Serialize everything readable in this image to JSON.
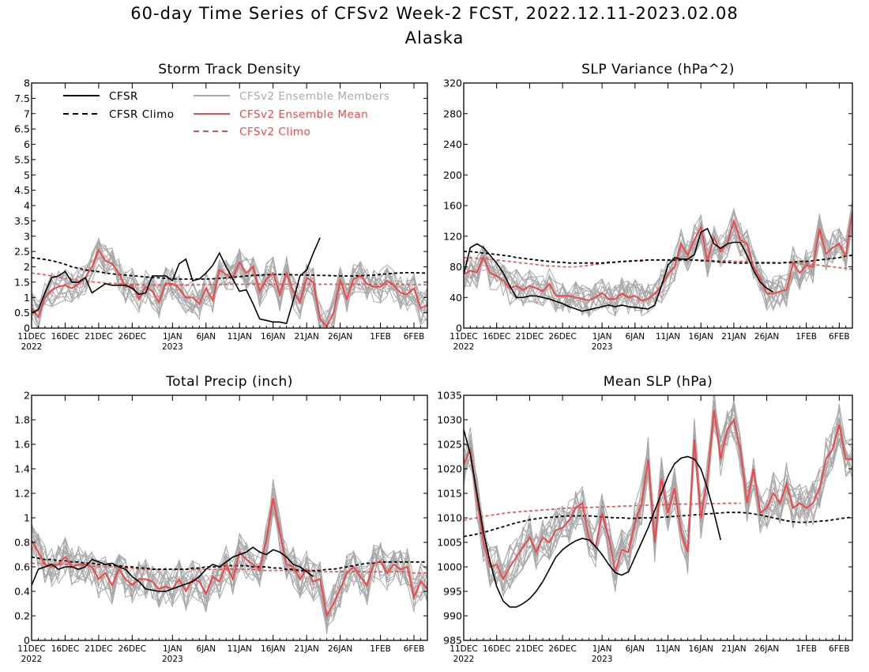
{
  "title_line1": "60-day Time Series of CFSv2 Week-2 FCST, 2022.12.11-2023.02.08",
  "title_line2": "Alaska",
  "legend": {
    "cfsr": "CFSR",
    "cfsr_climo": "CFSR Climo",
    "members": "CFSv2 Ensemble Members",
    "ens_mean": "CFSv2 Ensemble Mean",
    "cfsv2_climo": "CFSv2 Climo"
  },
  "colors": {
    "cfsr": "#000000",
    "members": "#a9a9a9",
    "ens_mean": "#f04848",
    "cfsv2_climo": "#f04848"
  },
  "x_ticks": [
    {
      "day": 0,
      "label": "11DEC",
      "sub": "2022"
    },
    {
      "day": 5,
      "label": "16DEC"
    },
    {
      "day": 10,
      "label": "21DEC"
    },
    {
      "day": 15,
      "label": "26DEC"
    },
    {
      "day": 21,
      "label": "1JAN",
      "sub": "2023"
    },
    {
      "day": 26,
      "label": "6JAN"
    },
    {
      "day": 31,
      "label": "11JAN"
    },
    {
      "day": 36,
      "label": "16JAN"
    },
    {
      "day": 41,
      "label": "21JAN"
    },
    {
      "day": 46,
      "label": "26JAN"
    },
    {
      "day": 52,
      "label": "1FEB"
    },
    {
      "day": 57,
      "label": "6FEB"
    }
  ],
  "chart_data": [
    {
      "type": "line",
      "title": "Storm Track Density",
      "x_days": [
        0,
        59
      ],
      "ylim": [
        0,
        8
      ],
      "yticks": [
        0,
        0.5,
        1,
        1.5,
        2,
        2.5,
        3,
        3.5,
        4,
        4.5,
        5,
        5.5,
        6,
        6.5,
        7,
        7.5,
        8
      ],
      "ytick_labels": [
        "0",
        "0.5",
        "1",
        "1.5",
        "2",
        "2.5",
        "3",
        "3.5",
        "4",
        "4.5",
        "5",
        "5.5",
        "6",
        "6.5",
        "7",
        "7.5",
        "8"
      ],
      "has_legend": true,
      "cfsr": [
        0.5,
        0.6,
        1.15,
        1.65,
        1.7,
        1.85,
        1.5,
        1.5,
        1.65,
        1.15,
        1.3,
        1.45,
        1.4,
        1.4,
        1.4,
        1.3,
        1.1,
        1.15,
        1.7,
        1.7,
        1.7,
        1.55,
        2.1,
        2.25,
        1.55,
        1.6,
        1.8,
        2.05,
        2.45,
        2.0,
        1.6,
        1.2,
        1.25,
        0.8,
        0.3,
        0.25,
        0.2,
        0.2,
        0.15,
        0.9,
        1.7,
        1.9,
        2.45,
        2.95
      ],
      "cfsr_climo": [
        2.3,
        2.27,
        2.24,
        2.2,
        2.15,
        2.08,
        2.0,
        1.95,
        1.9,
        1.87,
        1.84,
        1.8,
        1.77,
        1.75,
        1.73,
        1.71,
        1.69,
        1.67,
        1.65,
        1.64,
        1.62,
        1.61,
        1.6,
        1.6,
        1.6,
        1.6,
        1.6,
        1.61,
        1.62,
        1.64,
        1.66,
        1.68,
        1.7,
        1.72,
        1.73,
        1.74,
        1.75,
        1.75,
        1.75,
        1.74,
        1.74,
        1.73,
        1.73,
        1.72,
        1.72,
        1.71,
        1.7,
        1.7,
        1.7,
        1.71,
        1.72,
        1.73,
        1.75,
        1.77,
        1.79,
        1.8,
        1.81,
        1.81,
        1.8,
        1.8
      ],
      "ens_mean": [
        0.65,
        0.35,
        1.0,
        1.25,
        1.35,
        1.4,
        1.3,
        1.45,
        1.65,
        2.0,
        2.55,
        2.2,
        2.1,
        1.8,
        1.35,
        1.4,
        0.95,
        1.35,
        1.2,
        0.85,
        1.45,
        1.45,
        1.3,
        1.0,
        1.0,
        0.8,
        1.3,
        0.9,
        1.9,
        1.75,
        1.65,
        2.15,
        1.8,
        2.0,
        1.2,
        1.6,
        1.8,
        1.1,
        1.8,
        1.2,
        0.85,
        1.65,
        1.5,
        0.3,
        0.05,
        0.5,
        1.55,
        0.95,
        1.6,
        1.7,
        1.45,
        1.35,
        1.35,
        1.55,
        1.4,
        1.15,
        1.1,
        1.3,
        0.65,
        0.75
      ],
      "cfsv2_climo": [
        1.8,
        1.77,
        1.74,
        1.7,
        1.66,
        1.62,
        1.59,
        1.56,
        1.53,
        1.51,
        1.49,
        1.47,
        1.46,
        1.45,
        1.44,
        1.43,
        1.42,
        1.42,
        1.41,
        1.41,
        1.41,
        1.41,
        1.41,
        1.41,
        1.41,
        1.42,
        1.42,
        1.42,
        1.43,
        1.43,
        1.43,
        1.43,
        1.43,
        1.43,
        1.43,
        1.43,
        1.43,
        1.43,
        1.43,
        1.43,
        1.43,
        1.43,
        1.43,
        1.43,
        1.43,
        1.43,
        1.43,
        1.43,
        1.43,
        1.43,
        1.43,
        1.43,
        1.43,
        1.43,
        1.43,
        1.43,
        1.42,
        1.42,
        1.42,
        1.42
      ],
      "member_spread": 0.55,
      "member_count": 16
    },
    {
      "type": "line",
      "title": "SLP Variance (hPa^2)",
      "x_days": [
        0,
        59
      ],
      "ylim": [
        0,
        320
      ],
      "yticks": [
        0,
        40,
        80,
        120,
        160,
        200,
        240,
        280,
        320
      ],
      "ytick_labels": [
        "0",
        "40",
        "80",
        "120",
        "160",
        "200",
        "240",
        "280",
        "320"
      ],
      "has_legend": false,
      "cfsr": [
        70,
        105,
        110,
        105,
        95,
        85,
        72,
        55,
        40,
        40,
        42,
        42,
        40,
        38,
        35,
        32,
        28,
        25,
        22,
        24,
        26,
        28,
        30,
        28,
        30,
        28,
        27,
        26,
        25,
        30,
        55,
        82,
        92,
        90,
        90,
        96,
        125,
        130,
        110,
        104,
        110,
        112,
        112,
        95,
        75,
        60,
        52,
        47
      ],
      "cfsr_climo": [
        100,
        100,
        99,
        98,
        97,
        96,
        95,
        94,
        92,
        91,
        90,
        89,
        88,
        87,
        86,
        86,
        85,
        85,
        85,
        85,
        85,
        85,
        86,
        86,
        87,
        87,
        88,
        88,
        89,
        89,
        89,
        89,
        89,
        89,
        89,
        89,
        88,
        88,
        87,
        86,
        86,
        85,
        85,
        85,
        85,
        85,
        85,
        85,
        85,
        86,
        86,
        87,
        87,
        88,
        89,
        90,
        91,
        92,
        94,
        95
      ],
      "ens_mean": [
        70,
        75,
        73,
        92,
        72,
        68,
        62,
        52,
        55,
        50,
        55,
        52,
        48,
        58,
        42,
        42,
        42,
        40,
        38,
        36,
        40,
        46,
        38,
        38,
        45,
        40,
        42,
        36,
        38,
        45,
        55,
        70,
        80,
        110,
        95,
        115,
        132,
        88,
        118,
        100,
        110,
        140,
        115,
        110,
        80,
        65,
        45,
        45,
        48,
        50,
        85,
        72,
        82,
        80,
        130,
        97,
        105,
        110,
        95,
        153
      ],
      "cfsv2_climo": [
        92,
        92,
        91,
        91,
        90,
        89,
        88,
        87,
        86,
        85,
        84,
        83,
        82,
        81,
        81,
        80,
        80,
        80,
        81,
        82,
        83,
        84,
        85,
        86,
        87,
        88,
        88,
        89,
        89,
        89,
        89,
        89,
        89,
        89,
        89,
        89,
        89,
        89,
        88,
        88,
        88,
        87,
        87,
        87,
        86,
        86,
        86,
        86,
        85,
        85,
        85,
        84,
        84,
        83,
        82,
        81,
        80,
        79,
        78,
        77
      ],
      "member_spread": 22,
      "member_count": 16
    },
    {
      "type": "line",
      "title": "Total Precip (inch)",
      "x_days": [
        0,
        59
      ],
      "ylim": [
        0,
        2
      ],
      "yticks": [
        0,
        0.2,
        0.4,
        0.6,
        0.8,
        1,
        1.2,
        1.4,
        1.6,
        1.8,
        2
      ],
      "ytick_labels": [
        "0",
        "0.2",
        "0.4",
        "0.6",
        "0.8",
        "1",
        "1.2",
        "1.4",
        "1.6",
        "1.8",
        "2"
      ],
      "has_legend": false,
      "cfsr": [
        0.45,
        0.58,
        0.6,
        0.62,
        0.58,
        0.6,
        0.6,
        0.58,
        0.6,
        0.66,
        0.64,
        0.62,
        0.63,
        0.6,
        0.58,
        0.52,
        0.48,
        0.42,
        0.41,
        0.4,
        0.4,
        0.42,
        0.44,
        0.46,
        0.48,
        0.52,
        0.58,
        0.62,
        0.6,
        0.64,
        0.68,
        0.7,
        0.72,
        0.76,
        0.72,
        0.7,
        0.74,
        0.72,
        0.68,
        0.62,
        0.6,
        0.56,
        0.52
      ],
      "cfsr_climo": [
        0.68,
        0.67,
        0.66,
        0.66,
        0.65,
        0.65,
        0.64,
        0.64,
        0.63,
        0.63,
        0.62,
        0.62,
        0.61,
        0.61,
        0.6,
        0.6,
        0.59,
        0.59,
        0.58,
        0.58,
        0.58,
        0.58,
        0.58,
        0.58,
        0.59,
        0.59,
        0.6,
        0.6,
        0.6,
        0.61,
        0.61,
        0.61,
        0.61,
        0.6,
        0.6,
        0.6,
        0.59,
        0.59,
        0.58,
        0.58,
        0.57,
        0.57,
        0.57,
        0.57,
        0.58,
        0.58,
        0.59,
        0.6,
        0.61,
        0.62,
        0.63,
        0.63,
        0.64,
        0.64,
        0.64,
        0.64,
        0.64,
        0.64,
        0.64,
        0.64
      ],
      "ens_mean": [
        0.82,
        0.72,
        0.62,
        0.6,
        0.62,
        0.68,
        0.6,
        0.62,
        0.62,
        0.6,
        0.5,
        0.55,
        0.45,
        0.58,
        0.5,
        0.45,
        0.5,
        0.5,
        0.48,
        0.42,
        0.44,
        0.42,
        0.5,
        0.4,
        0.5,
        0.48,
        0.38,
        0.52,
        0.48,
        0.62,
        0.5,
        0.72,
        0.66,
        0.62,
        0.58,
        0.82,
        1.16,
        0.88,
        0.62,
        0.6,
        0.5,
        0.58,
        0.48,
        0.5,
        0.2,
        0.3,
        0.42,
        0.55,
        0.6,
        0.52,
        0.45,
        0.62,
        0.65,
        0.55,
        0.62,
        0.58,
        0.6,
        0.35,
        0.48,
        0.42
      ],
      "cfsv2_climo": [
        0.63,
        0.63,
        0.63,
        0.62,
        0.62,
        0.62,
        0.62,
        0.61,
        0.61,
        0.61,
        0.6,
        0.6,
        0.6,
        0.59,
        0.59,
        0.59,
        0.58,
        0.58,
        0.58,
        0.58,
        0.58,
        0.58,
        0.58,
        0.58,
        0.58,
        0.58,
        0.58,
        0.58,
        0.58,
        0.58,
        0.58,
        0.58,
        0.58,
        0.58,
        0.57,
        0.57,
        0.57,
        0.57,
        0.57,
        0.57,
        0.56,
        0.56,
        0.56,
        0.56,
        0.56,
        0.56,
        0.56,
        0.56,
        0.56,
        0.56,
        0.56,
        0.56,
        0.56,
        0.56,
        0.56,
        0.56,
        0.56,
        0.55,
        0.55,
        0.55
      ],
      "member_spread": 0.16,
      "member_count": 16
    },
    {
      "type": "line",
      "title": "Mean SLP (hPa)",
      "x_days": [
        0,
        59
      ],
      "ylim": [
        985,
        1035
      ],
      "yticks": [
        985,
        990,
        995,
        1000,
        1005,
        1010,
        1015,
        1020,
        1025,
        1030,
        1035
      ],
      "ytick_labels": [
        "985",
        "990",
        "995",
        "1000",
        "1005",
        "1010",
        "1015",
        "1020",
        "1025",
        "1030",
        "1035"
      ],
      "has_legend": false,
      "cfsr": [
        1028,
        1023,
        1015,
        1007,
        1001,
        996,
        993,
        991.8,
        991.8,
        992.5,
        993.5,
        995,
        997,
        999.5,
        1002,
        1003.5,
        1004.5,
        1005.3,
        1005.8,
        1005.5,
        1004.2,
        1002.5,
        1000.5,
        998.8,
        998.3,
        999,
        1002,
        1005,
        1008,
        1011.5,
        1015,
        1018.5,
        1021,
        1022.2,
        1022.5,
        1022,
        1020,
        1016,
        1011,
        1005.5
      ],
      "cfsr_climo": [
        1006.2,
        1006.4,
        1006.7,
        1007,
        1007.4,
        1007.8,
        1008.2,
        1008.6,
        1009,
        1009.3,
        1009.6,
        1009.8,
        1010,
        1010.1,
        1010.2,
        1010.3,
        1010.4,
        1010.4,
        1010.4,
        1010.4,
        1010.3,
        1010.2,
        1010.1,
        1010,
        1010,
        1009.9,
        1009.9,
        1010,
        1010,
        1010,
        1010.1,
        1010.2,
        1010.3,
        1010.4,
        1010.5,
        1010.6,
        1010.7,
        1010.8,
        1010.9,
        1011,
        1011.1,
        1011.1,
        1011.1,
        1011,
        1010.8,
        1010.6,
        1010.3,
        1010,
        1009.7,
        1009.4,
        1009.2,
        1009.1,
        1009.1,
        1009.2,
        1009.3,
        1009.4,
        1009.6,
        1009.8,
        1010,
        1010.1
      ],
      "ens_mean": [
        1021,
        1024,
        1014,
        1005,
        1000,
        1000.5,
        997.5,
        1000,
        1002,
        1004,
        1006,
        1003,
        1006,
        1005,
        1007.5,
        1008,
        1009.5,
        1012,
        1013,
        1006,
        1004,
        1011,
        1006,
        999,
        1003.5,
        1003,
        1009,
        1013,
        1022,
        1005,
        1018,
        1011,
        1016,
        1007,
        1003,
        1026,
        1010,
        1018,
        1032,
        1022,
        1028,
        1030,
        1024,
        1013,
        1020,
        1011,
        1012,
        1015,
        1013,
        1017,
        1012,
        1013,
        1012,
        1013,
        1016,
        1022,
        1024,
        1029,
        1022,
        1022
      ],
      "cfsv2_climo": [
        1009.5,
        1009.8,
        1010,
        1010.3,
        1010.5,
        1010.7,
        1010.9,
        1011.1,
        1011.2,
        1011.3,
        1011.4,
        1011.5,
        1011.6,
        1011.7,
        1011.8,
        1011.9,
        1012,
        1012,
        1012.1,
        1012.1,
        1012.2,
        1012.2,
        1012.3,
        1012.3,
        1012.4,
        1012.4,
        1012.5,
        1012.5,
        1012.6,
        1012.6,
        1012.7,
        1012.7,
        1012.8,
        1012.8,
        1012.8,
        1012.8,
        1012.9,
        1012.9,
        1012.9,
        1012.9,
        1013,
        1013,
        1013
      ],
      "member_spread": 4.5,
      "member_count": 16
    }
  ]
}
